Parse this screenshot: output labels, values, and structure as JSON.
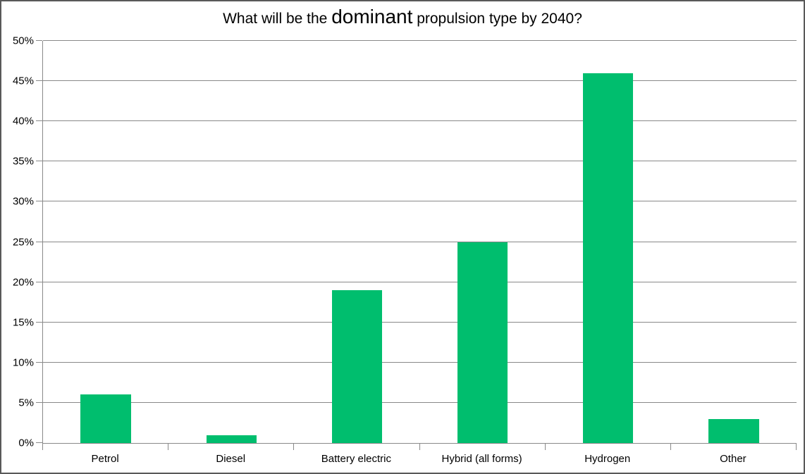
{
  "chart_data": {
    "type": "bar",
    "title": "What will be the dominant propulsion type by 2040?",
    "title_parts": [
      "What will be the ",
      "dominant",
      " propulsion type by 2040?"
    ],
    "categories": [
      "Petrol",
      "Diesel",
      "Battery electric",
      "Hybrid (all forms)",
      "Hydrogen",
      "Other"
    ],
    "values": [
      6,
      1,
      19,
      25,
      46,
      3
    ],
    "value_unit": "%",
    "xlabel": "",
    "ylabel": "",
    "ylim": [
      0,
      50
    ],
    "yticks": [
      0,
      5,
      10,
      15,
      20,
      25,
      30,
      35,
      40,
      45,
      50
    ],
    "ytick_labels": [
      "0%",
      "5%",
      "10%",
      "15%",
      "20%",
      "25%",
      "30%",
      "35%",
      "40%",
      "45%",
      "50%"
    ],
    "grid": true,
    "legend": "none",
    "bar_color": "#00BE6E",
    "gridline_color": "#898989",
    "axis_color": "#898989",
    "frame_border_color": "#595959",
    "text_color": "#000000"
  }
}
